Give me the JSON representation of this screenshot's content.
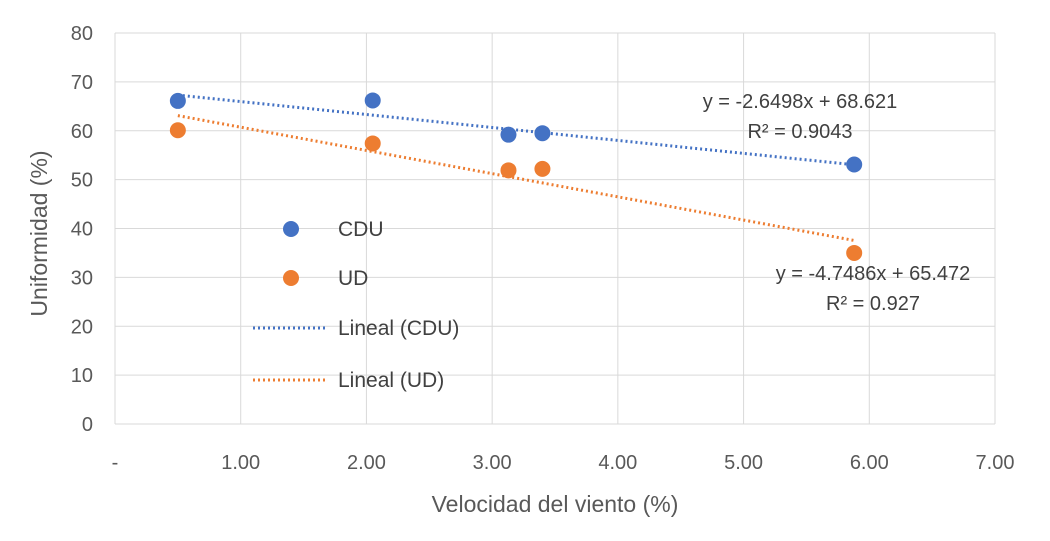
{
  "chart_data": {
    "type": "scatter",
    "title": "",
    "xlabel": "Velocidad del viento (%)",
    "ylabel": "Uniformidad (%)",
    "xlim": [
      0,
      7
    ],
    "ylim": [
      0,
      80
    ],
    "x_ticks": [
      0,
      1,
      2,
      3,
      4,
      5,
      6,
      7
    ],
    "x_tick_labels": [
      "-",
      "1.00",
      "2.00",
      "3.00",
      "4.00",
      "5.00",
      "6.00",
      "7.00"
    ],
    "y_ticks": [
      0,
      10,
      20,
      30,
      40,
      50,
      60,
      70,
      80
    ],
    "y_tick_labels": [
      "0",
      "10",
      "20",
      "30",
      "40",
      "50",
      "60",
      "70",
      "80"
    ],
    "grid": true,
    "legend_position": "center-left",
    "series": [
      {
        "name": "CDU",
        "color": "#4472C4",
        "x": [
          0.5,
          2.05,
          3.13,
          3.4,
          5.88
        ],
        "y": [
          66.1,
          66.2,
          59.2,
          59.5,
          53.1
        ]
      },
      {
        "name": "UD",
        "color": "#ED7D31",
        "x": [
          0.5,
          2.05,
          3.13,
          3.4,
          5.88
        ],
        "y": [
          60.1,
          57.4,
          51.9,
          52.2,
          35.0
        ]
      }
    ],
    "trendlines": [
      {
        "name": "Lineal (CDU)",
        "color": "#4472C4",
        "slope": -2.6498,
        "intercept": 68.621,
        "x_range": [
          0.5,
          5.88
        ],
        "equation": "y = -2.6498x + 68.621",
        "r2": "R² = 0.9043"
      },
      {
        "name": "Lineal (UD)",
        "color": "#ED7D31",
        "slope": -4.7486,
        "intercept": 65.472,
        "x_range": [
          0.5,
          5.88
        ],
        "equation": "y = -4.7486x + 65.472",
        "r2": "R² = 0.927"
      }
    ]
  }
}
